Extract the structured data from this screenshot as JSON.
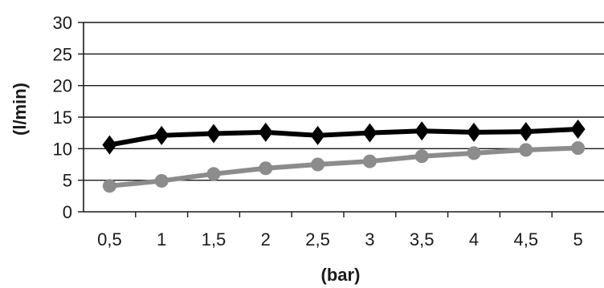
{
  "chart_data": {
    "type": "line",
    "title": "",
    "xlabel": "(bar)",
    "ylabel": "(l/min)",
    "categories": [
      "0,5",
      "1",
      "1,5",
      "2",
      "2,5",
      "3",
      "3,5",
      "4",
      "4,5",
      "5"
    ],
    "x": [
      0.5,
      1,
      1.5,
      2,
      2.5,
      3,
      3.5,
      4,
      4.5,
      5
    ],
    "ylim": [
      0,
      30
    ],
    "yticks": [
      0,
      5,
      10,
      15,
      20,
      25,
      30
    ],
    "grid": true,
    "legend": "none",
    "series": [
      {
        "marker": "diamond",
        "color": "#000000",
        "values": [
          10.6,
          12.1,
          12.4,
          12.6,
          12.1,
          12.5,
          12.8,
          12.6,
          12.7,
          13.1
        ]
      },
      {
        "marker": "circle",
        "color": "#8c8c8c",
        "values": [
          4.1,
          4.9,
          6.0,
          6.9,
          7.5,
          8.0,
          8.8,
          9.3,
          9.8,
          10.1
        ]
      }
    ]
  }
}
